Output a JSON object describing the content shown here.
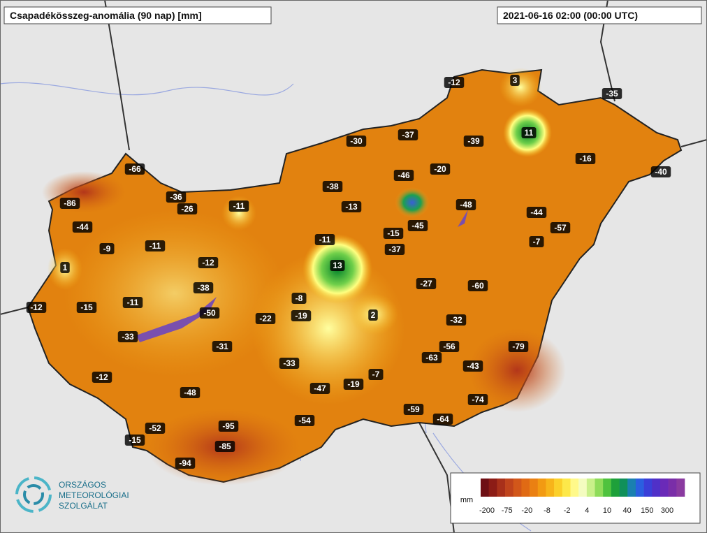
{
  "title": "Csapadékösszeg-anomália (90 nap) [mm]",
  "timestamp": "2021-06-16 02:00 (00:00 UTC)",
  "stations": [
    -12,
    3,
    -35,
    11,
    -30,
    -37,
    -39,
    -16,
    -40,
    -66,
    -46,
    -20,
    -38,
    -36,
    -11,
    -26,
    -86,
    -13,
    -48,
    -44,
    -57,
    -44,
    -15,
    -45,
    -9,
    -11,
    -11,
    -37,
    -7,
    1,
    -12,
    13,
    -27,
    -60,
    -38,
    -8,
    -12,
    -15,
    -11,
    -50,
    -22,
    -19,
    2,
    -32,
    -33,
    -31,
    -56,
    -79,
    -63,
    -43,
    -33,
    -12,
    -7,
    -19,
    -47,
    -48,
    -74,
    -59,
    -54,
    -64,
    -52,
    -95,
    -15,
    -85,
    -94
  ],
  "legend": {
    "unit": "mm",
    "labels": [
      -200,
      -75,
      -20,
      -8,
      -2,
      4,
      10,
      40,
      150,
      300
    ]
  },
  "logo": {
    "lines": [
      "ORSZÁGOS",
      "METEOROLÓGIAI",
      "SZOLGÁLAT"
    ]
  }
}
